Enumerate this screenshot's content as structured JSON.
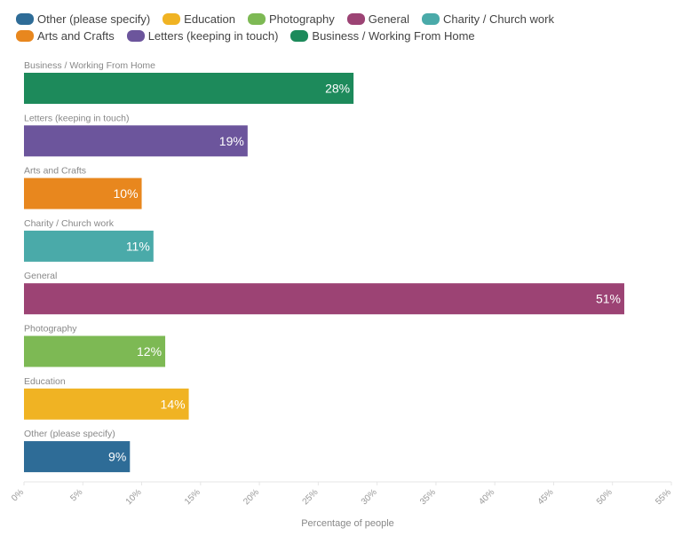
{
  "legend": [
    {
      "label": "Other (please specify)",
      "color": "#2e6c97"
    },
    {
      "label": "Education",
      "color": "#f0b323"
    },
    {
      "label": "Photography",
      "color": "#7db954"
    },
    {
      "label": "General",
      "color": "#9c4374"
    },
    {
      "label": "Charity / Church work",
      "color": "#4aaaa9"
    },
    {
      "label": "Arts and Crafts",
      "color": "#e8871e"
    },
    {
      "label": "Letters (keeping in touch)",
      "color": "#6c559c"
    },
    {
      "label": "Business / Working From Home",
      "color": "#1d8a5b"
    }
  ],
  "chart_data": {
    "type": "bar",
    "orientation": "horizontal",
    "categories": [
      "Business / Working From Home",
      "Letters (keeping in touch)",
      "Arts and Crafts",
      "Charity / Church work",
      "General",
      "Photography",
      "Education",
      "Other (please specify)"
    ],
    "values": [
      28,
      19,
      10,
      11,
      51,
      12,
      14,
      9
    ],
    "value_labels": [
      "28%",
      "19%",
      "10%",
      "11%",
      "51%",
      "12%",
      "14%",
      "9%"
    ],
    "colors": [
      "#1d8a5b",
      "#6c559c",
      "#e8871e",
      "#4aaaa9",
      "#9c4374",
      "#7db954",
      "#f0b323",
      "#2e6c97"
    ],
    "xlim": [
      0,
      55
    ],
    "xticks": [
      0,
      5,
      10,
      15,
      20,
      25,
      30,
      35,
      40,
      45,
      50,
      55
    ],
    "xtick_labels": [
      "0%",
      "5%",
      "10%",
      "15%",
      "20%",
      "25%",
      "30%",
      "35%",
      "40%",
      "45%",
      "50%",
      "55%"
    ],
    "xlabel": "Percentage of people",
    "grid": false,
    "legend_position": "top-left"
  }
}
